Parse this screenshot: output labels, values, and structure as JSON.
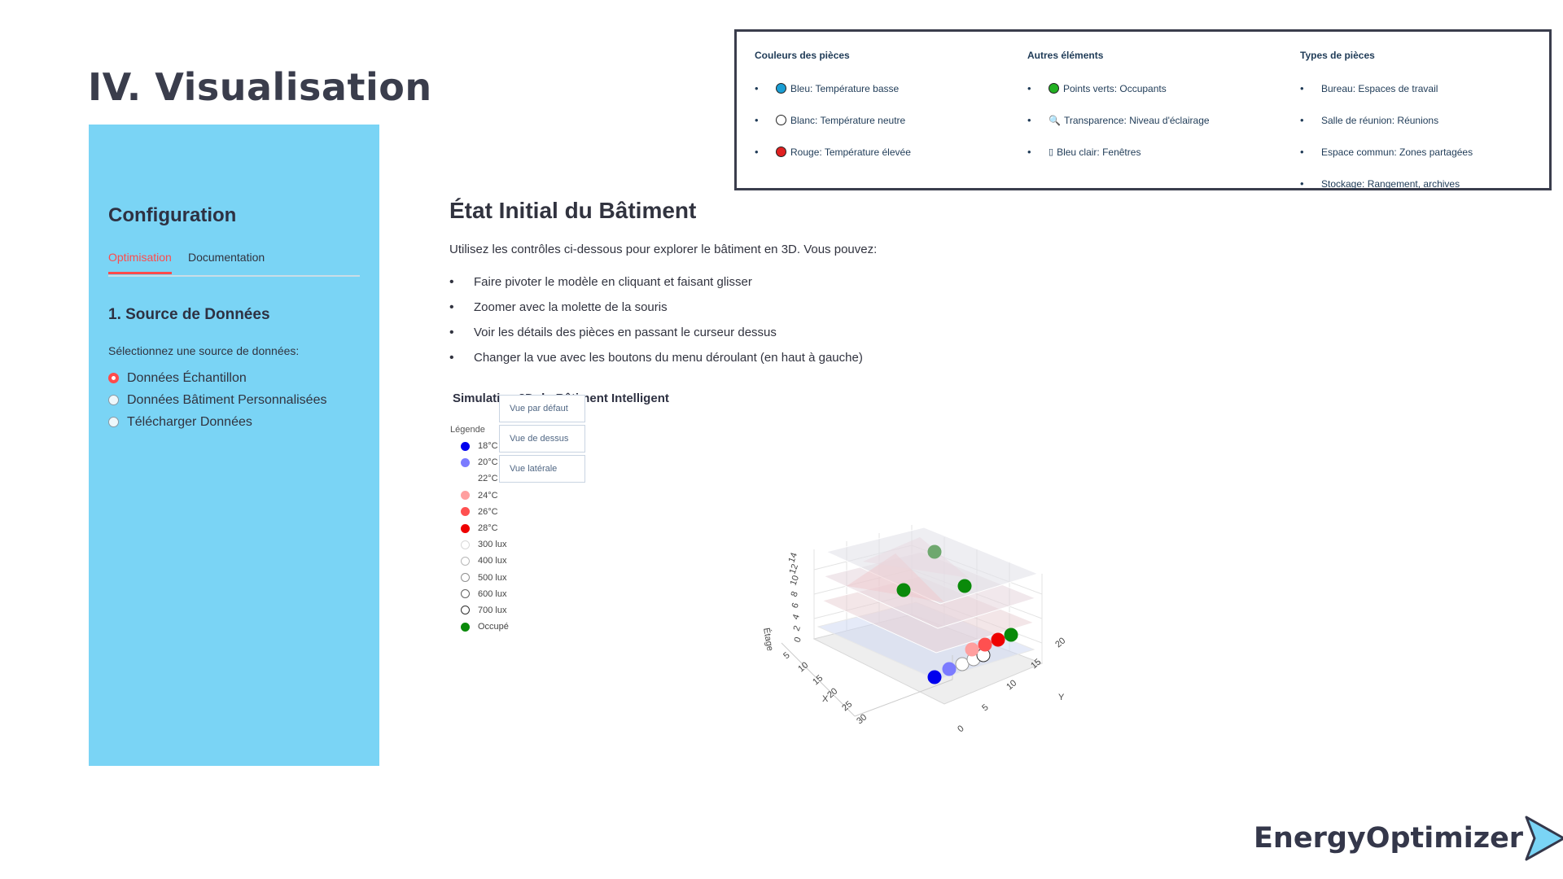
{
  "slide": {
    "title": "IV.  Visualisation"
  },
  "sidebar": {
    "title": "Configuration",
    "tabs": [
      {
        "label": "Optimisation",
        "active": true
      },
      {
        "label": "Documentation",
        "active": false
      }
    ],
    "section_title": "1. Source de Données",
    "source_label": "Sélectionnez une source de données:",
    "sources": [
      {
        "label": "Données Échantillon",
        "selected": true
      },
      {
        "label": "Données Bâtiment Personnalisées",
        "selected": false
      },
      {
        "label": "Télécharger Données",
        "selected": false
      }
    ]
  },
  "legend_box": {
    "columns": [
      {
        "heading": "Couleurs des pièces",
        "items": [
          {
            "text": "Bleu: Température basse",
            "dot": "#1a9ed4"
          },
          {
            "text": "Blanc: Température neutre",
            "dot": "#ffffff"
          },
          {
            "text": "Rouge: Température élevée",
            "dot": "#e02020"
          }
        ]
      },
      {
        "heading": "Autres éléments",
        "items": [
          {
            "text": "Points verts: Occupants",
            "dot": "#22b022",
            "icon": ""
          },
          {
            "text": "Transparence: Niveau d'éclairage",
            "dot": "",
            "icon": "🔍"
          },
          {
            "text": "Bleu clair: Fenêtres",
            "dot": "",
            "icon": "▯"
          }
        ]
      },
      {
        "heading": "Types de pièces",
        "items": [
          {
            "text": "Bureau: Espaces de travail"
          },
          {
            "text": "Salle de réunion: Réunions"
          },
          {
            "text": "Espace commun: Zones partagées"
          },
          {
            "text": "Stockage: Rangement, archives"
          }
        ]
      }
    ]
  },
  "main": {
    "title": "État Initial du Bâtiment",
    "description": "Utilisez les contrôles ci-dessous pour explorer le bâtiment en 3D. Vous pouvez:",
    "bullets": [
      "Faire pivoter le modèle en cliquant et faisant glisser",
      "Zoomer avec la molette de la souris",
      "Voir les détails des pièces en passant le curseur dessus",
      "Changer la vue avec les boutons du menu déroulant (en haut à gauche)"
    ],
    "sim_title": "Simulation 3D du Bâtiment Intelligent",
    "view_buttons": [
      "Vue par défaut",
      "Vue de dessus",
      "Vue latérale"
    ]
  },
  "chart_legend": {
    "title": "Légende",
    "items": [
      {
        "label": "18°C",
        "color": "#0000ee",
        "fill": true
      },
      {
        "label": "20°C",
        "color": "#7b7bff",
        "fill": true
      },
      {
        "label": "22°C",
        "color": "#ffffff",
        "fill": true
      },
      {
        "label": "24°C",
        "color": "#ff9f9f",
        "fill": true
      },
      {
        "label": "26°C",
        "color": "#ff5050",
        "fill": true
      },
      {
        "label": "28°C",
        "color": "#ee0000",
        "fill": true
      },
      {
        "label": "300 lux",
        "color": "#d8d8d8",
        "fill": false
      },
      {
        "label": "400 lux",
        "color": "#b8b8b8",
        "fill": false
      },
      {
        "label": "500 lux",
        "color": "#909090",
        "fill": false
      },
      {
        "label": "600 lux",
        "color": "#606060",
        "fill": false
      },
      {
        "label": "700 lux",
        "color": "#303030",
        "fill": false
      },
      {
        "label": "Occupé",
        "color": "#0a8a0a",
        "fill": true
      }
    ]
  },
  "chart_data": {
    "type": "scatter",
    "xlabel": "X",
    "ylabel": "Y",
    "zlabel": "Étage",
    "x_ticks": [
      "5",
      "10",
      "15",
      "20",
      "25",
      "30"
    ],
    "y_ticks": [
      "0",
      "5",
      "10",
      "15",
      "20"
    ],
    "z_ticks": [
      "0",
      "2",
      "4",
      "6",
      "8",
      "10",
      "12",
      "14"
    ]
  },
  "brand": {
    "name": "EnergyOptimizer"
  }
}
